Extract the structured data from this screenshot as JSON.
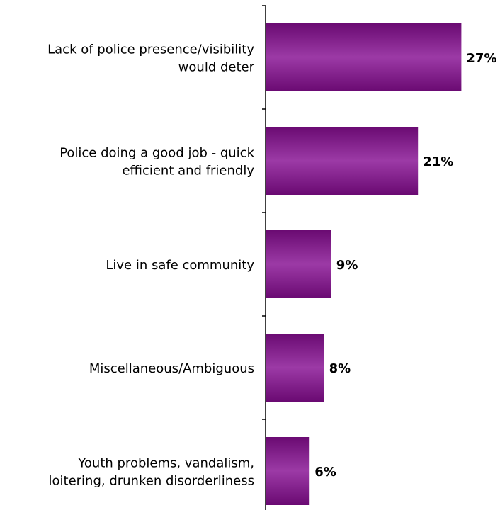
{
  "chart_data": {
    "type": "bar",
    "orientation": "horizontal",
    "categories": [
      [
        "Lack of police presence/visibility",
        "would deter"
      ],
      [
        "Police doing a good job - quick",
        "efficient and friendly"
      ],
      [
        "Live in safe community"
      ],
      [
        "Miscellaneous/Ambiguous"
      ],
      [
        "Youth problems, vandalism,",
        "loitering, drunken disorderliness"
      ]
    ],
    "values": [
      27,
      21,
      9,
      8,
      6
    ],
    "value_labels": [
      "27%",
      "21%",
      "9%",
      "8%",
      "6%"
    ],
    "title": "",
    "xlabel": "",
    "ylabel": "",
    "grid": false,
    "legend": "none",
    "colors": {
      "bar_light": "#9c3aa6",
      "bar_mid": "#8c2594",
      "bar_dark": "#6a0a72",
      "axis": "#000000",
      "text": "#000000"
    }
  }
}
